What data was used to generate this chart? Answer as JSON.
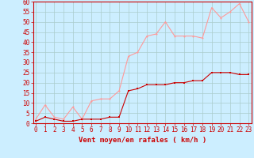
{
  "title": "",
  "xlabel": "Vent moyen/en rafales ( km/h )",
  "background_color": "#cceeff",
  "grid_color": "#aacccc",
  "x_values": [
    0,
    1,
    2,
    3,
    4,
    5,
    6,
    7,
    8,
    9,
    10,
    11,
    12,
    13,
    14,
    15,
    16,
    17,
    18,
    19,
    20,
    21,
    22,
    23
  ],
  "mean_wind": [
    1,
    3,
    2,
    1,
    1,
    2,
    2,
    2,
    3,
    3,
    16,
    17,
    19,
    19,
    19,
    20,
    20,
    21,
    21,
    25,
    25,
    25,
    24,
    24
  ],
  "gust_wind": [
    2,
    9,
    3,
    2,
    8,
    2,
    11,
    12,
    12,
    16,
    33,
    35,
    43,
    44,
    50,
    43,
    43,
    43,
    42,
    57,
    52,
    55,
    59,
    50
  ],
  "mean_color": "#cc0000",
  "gust_color": "#ff9999",
  "ylim": [
    0,
    60
  ],
  "yticks": [
    0,
    5,
    10,
    15,
    20,
    25,
    30,
    35,
    40,
    45,
    50,
    55,
    60
  ],
  "xticks": [
    0,
    1,
    2,
    3,
    4,
    5,
    6,
    7,
    8,
    9,
    10,
    11,
    12,
    13,
    14,
    15,
    16,
    17,
    18,
    19,
    20,
    21,
    22,
    23
  ],
  "xlabel_color": "#cc0000",
  "tick_color": "#cc0000",
  "xlabel_fontsize": 6.5,
  "tick_fontsize": 5.5,
  "spine_color": "#cc0000"
}
